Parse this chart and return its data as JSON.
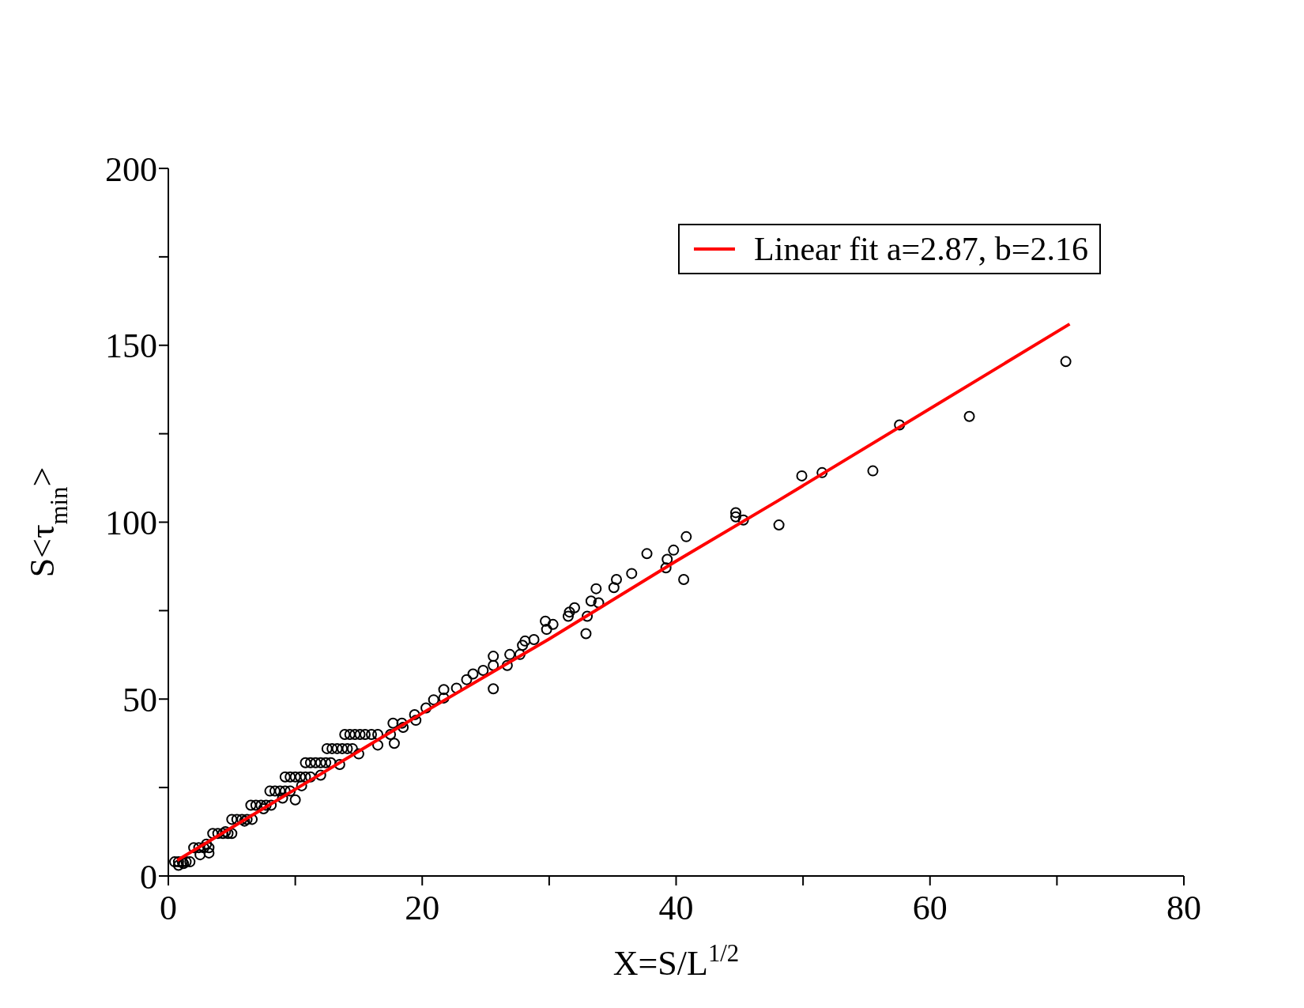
{
  "chart_data": {
    "type": "scatter",
    "xlabel": "X=S/L$^{1/2}$",
    "ylabel": "S<τ$_{min}$>",
    "xlim": [
      0,
      80
    ],
    "ylim": [
      0,
      200
    ],
    "xticks": [
      0,
      {
        "value": 10,
        "label": null
      },
      20,
      {
        "value": 30,
        "label": null
      },
      40,
      {
        "value": 50,
        "label": null
      },
      60,
      {
        "value": 70,
        "label": null
      },
      80
    ],
    "yticks": [
      0,
      {
        "value": 25,
        "label": null
      },
      50,
      {
        "value": 75,
        "label": null
      },
      100,
      {
        "value": 125,
        "label": null
      },
      150,
      {
        "value": 175,
        "label": null
      },
      200
    ],
    "legend": "top right",
    "series": [
      {
        "color": "#000000",
        "marker": "circle",
        "x": [
          0.5,
          0.8,
          1.1,
          1.4,
          1.7,
          0.8,
          1.2,
          2.0,
          2.4,
          2.8,
          3.2,
          2.5,
          3.2,
          3.5,
          3.9,
          4.3,
          4.7,
          5.0,
          5.0,
          5.4,
          5.8,
          6.2,
          6.6,
          6.5,
          6.9,
          7.3,
          7.7,
          8.1,
          8.0,
          8.4,
          8.8,
          9.2,
          9.6,
          9.2,
          9.6,
          10.0,
          10.4,
          10.8,
          11.2,
          10.8,
          11.2,
          11.6,
          12.0,
          12.4,
          12.8,
          12.5,
          12.9,
          13.3,
          13.7,
          14.1,
          14.5,
          13.9,
          14.3,
          14.7,
          15.1,
          15.5,
          16.0,
          16.5,
          3,
          4.5,
          6,
          7.5,
          9,
          10,
          10.5,
          12,
          13.5,
          15,
          16.5,
          17.5,
          18.5,
          19.5,
          17.7,
          17.8,
          18.4,
          19.4,
          20.3,
          20.9,
          21.7,
          21.7,
          22.7,
          23.5,
          24.0,
          24.8,
          25.6,
          25.6,
          25.6,
          26.7,
          26.9,
          27.7,
          27.9,
          28.1,
          28.8,
          29.8,
          29.7,
          30.3,
          31.5,
          31.6,
          32.0,
          33.0,
          32.9,
          33.3,
          33.9,
          33.7,
          35.1,
          35.3,
          36.5,
          37.7,
          39.2,
          39.3,
          39.8,
          40.6,
          40.8,
          44.7,
          44.7,
          45.3,
          48.1,
          49.9,
          51.5,
          55.5,
          57.6,
          63.1,
          70.7
        ],
        "values": [
          4,
          4,
          4,
          4,
          4,
          3,
          3.5,
          8,
          8,
          8,
          8,
          6,
          6.5,
          12,
          12,
          12,
          12,
          12,
          16,
          16,
          16,
          16,
          16,
          20,
          20,
          20,
          20,
          20,
          24,
          24,
          24,
          24,
          24,
          28,
          28,
          28,
          28,
          28,
          28,
          32,
          32,
          32,
          32,
          32,
          32,
          36,
          36,
          36,
          36,
          36,
          36,
          40,
          40,
          40,
          40,
          40,
          40,
          40,
          9,
          12.5,
          15.5,
          19,
          22,
          21.5,
          25.5,
          28.5,
          31.5,
          34.5,
          37,
          40,
          42,
          44,
          43.2,
          37.5,
          43.2,
          45.6,
          47.5,
          49.8,
          50.3,
          52.7,
          53.1,
          55.5,
          57.1,
          58.1,
          62.1,
          59.5,
          52.9,
          59.5,
          62.6,
          62.6,
          65.2,
          66.4,
          66.8,
          69.7,
          72.0,
          71.1,
          73.4,
          74.6,
          75.8,
          73.4,
          68.5,
          77.7,
          77.2,
          81.2,
          81.5,
          83.8,
          85.5,
          91.1,
          87.1,
          89.5,
          92.1,
          83.8,
          95.9,
          101.5,
          102.7,
          100.6,
          99.2,
          113.1,
          114.0,
          114.5,
          127.5,
          129.9,
          145.4
        ]
      },
      {
        "type": "line",
        "name": "Linear fit a=2.87, b=2.16",
        "color": "#ff0000",
        "marker": "none",
        "line_style": "solid",
        "x": [
          0.7,
          10,
          20,
          30,
          40,
          48,
          71
        ],
        "values": [
          4.4,
          24.5,
          46,
          67,
          89,
          106,
          156
        ]
      }
    ]
  }
}
